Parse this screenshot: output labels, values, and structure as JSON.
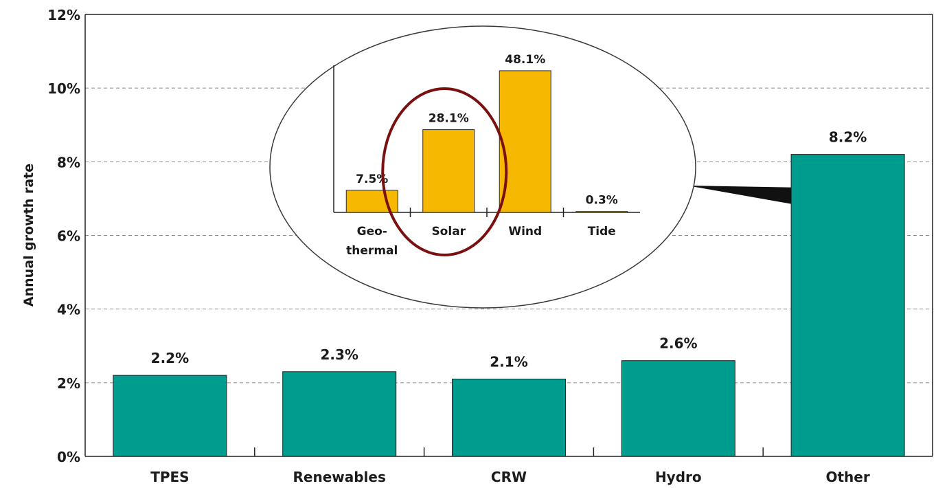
{
  "colors": {
    "main_bar": "#009c8e",
    "inset_bar": "#f6b800",
    "highlight_ring": "#7a1010",
    "grid": "#8a8a8a",
    "axis": "#222222"
  },
  "chart_data": [
    {
      "type": "bar",
      "categories": [
        "TPES",
        "Renewables",
        "CRW",
        "Hydro",
        "Other"
      ],
      "values": [
        2.2,
        2.3,
        2.1,
        2.6,
        8.2
      ],
      "data_labels": [
        "2.2%",
        "2.3%",
        "2.1%",
        "2.6%",
        "8.2%"
      ],
      "ylabel": "Annual growth rate",
      "ylim": [
        0,
        12
      ],
      "yticks": [
        0,
        2,
        4,
        6,
        8,
        10,
        12
      ],
      "ytick_labels": [
        "0%",
        "2%",
        "4%",
        "6%",
        "8%",
        "10%",
        "12%"
      ],
      "grid": true,
      "grid_style": "dashed-horizontal"
    },
    {
      "type": "bar",
      "inset_of": "Other",
      "categories": [
        "Geo-thermal",
        "Solar",
        "Wind",
        "Tide"
      ],
      "category_label_lines": [
        [
          "Geo-",
          "thermal"
        ],
        [
          "Solar"
        ],
        [
          "Wind"
        ],
        [
          "Tide"
        ]
      ],
      "values": [
        7.5,
        28.1,
        48.1,
        0.3
      ],
      "data_labels": [
        "7.5%",
        "28.1%",
        "48.1%",
        "0.3%"
      ],
      "highlighted_category": "Solar"
    }
  ]
}
